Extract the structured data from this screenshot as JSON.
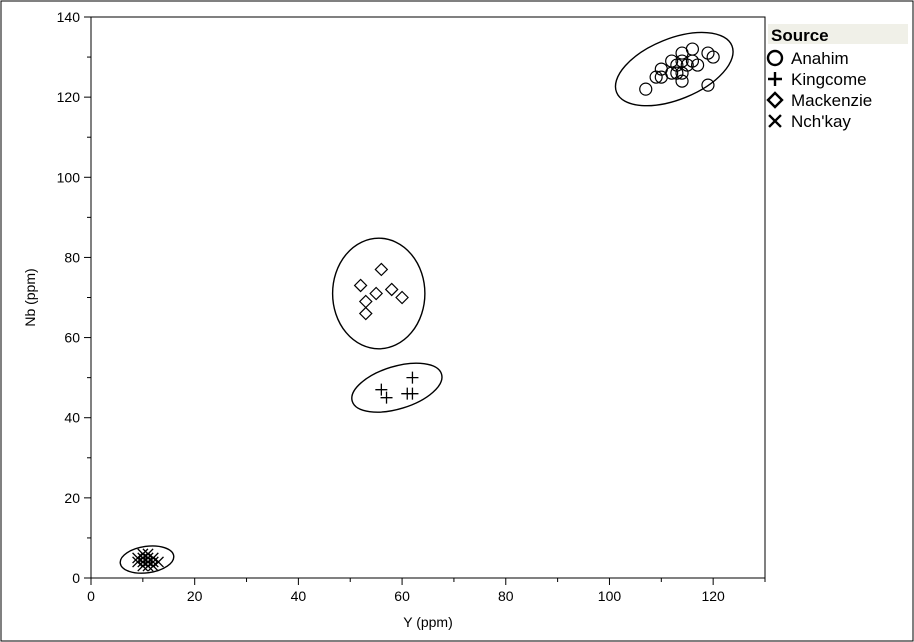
{
  "chart_data": {
    "type": "scatter",
    "xlabel": "Y (ppm)",
    "ylabel": "Nb (ppm)",
    "xlim": [
      0,
      130
    ],
    "ylim": [
      0,
      140
    ],
    "x_ticks": [
      0,
      20,
      40,
      60,
      80,
      100,
      120
    ],
    "y_ticks": [
      0,
      20,
      40,
      60,
      80,
      100,
      120,
      140
    ],
    "x_minor_step": 10,
    "y_minor_step": 10,
    "grid": false,
    "legend": {
      "title": "Source",
      "placement": "right"
    },
    "series": [
      {
        "name": "Anahim",
        "marker": "circle",
        "points": [
          [
            107,
            122
          ],
          [
            109,
            125
          ],
          [
            110,
            125
          ],
          [
            110,
            127
          ],
          [
            112,
            126
          ],
          [
            112,
            129
          ],
          [
            113,
            126
          ],
          [
            113,
            128
          ],
          [
            114,
            124
          ],
          [
            114,
            126
          ],
          [
            114,
            129
          ],
          [
            114,
            131
          ],
          [
            115,
            128
          ],
          [
            116,
            129
          ],
          [
            116,
            132
          ],
          [
            117,
            128
          ],
          [
            119,
            123
          ],
          [
            119,
            131
          ],
          [
            120,
            130
          ]
        ],
        "ellipse": {
          "center": [
            112.5,
            127
          ],
          "semi_axes": [
            12,
            7.6
          ],
          "angle": 22
        }
      },
      {
        "name": "Kingcome",
        "marker": "plus",
        "points": [
          [
            56,
            47
          ],
          [
            57,
            45
          ],
          [
            61,
            46
          ],
          [
            62,
            46
          ],
          [
            62,
            50
          ]
        ],
        "ellipse": {
          "center": [
            59,
            47.5
          ],
          "semi_axes": [
            9,
            5.3
          ],
          "angle": 17
        }
      },
      {
        "name": "Mackenzie",
        "marker": "diamond",
        "points": [
          [
            52,
            73
          ],
          [
            53,
            69
          ],
          [
            53,
            66
          ],
          [
            55,
            71
          ],
          [
            56,
            77
          ],
          [
            58,
            72
          ],
          [
            60,
            70
          ]
        ],
        "ellipse": {
          "center": [
            55.5,
            71
          ],
          "semi_axes": [
            8.9,
            13.8
          ],
          "angle": 0
        }
      },
      {
        "name": "Nch'kay",
        "marker": "x",
        "points": [
          [
            9,
            5
          ],
          [
            10,
            4
          ],
          [
            10,
            5
          ],
          [
            10,
            3
          ],
          [
            11,
            4
          ],
          [
            11,
            5
          ],
          [
            11,
            6
          ],
          [
            12,
            4
          ],
          [
            12,
            5
          ],
          [
            12,
            3
          ],
          [
            13,
            4
          ],
          [
            11,
            3
          ],
          [
            9,
            4
          ],
          [
            10,
            6
          ]
        ],
        "ellipse": {
          "center": [
            10.8,
            4.6
          ],
          "semi_axes": [
            5.2,
            3.3
          ],
          "angle": 8
        }
      }
    ]
  }
}
